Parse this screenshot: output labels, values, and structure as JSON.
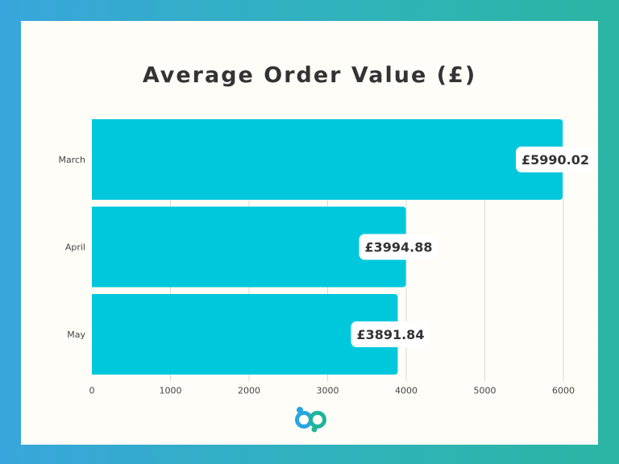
{
  "chart_data": {
    "type": "bar",
    "orientation": "horizontal",
    "title": "Average Order Value (£)",
    "xlabel": "",
    "ylabel": "",
    "categories": [
      "March",
      "April",
      "May"
    ],
    "values": [
      5990.02,
      3994.88,
      3891.84
    ],
    "data_labels": [
      "£5990.02",
      "£3994.88",
      "£3891.84"
    ],
    "x_ticks": [
      "0",
      "1000",
      "2000",
      "3000",
      "4000",
      "5000",
      "6000"
    ],
    "xlim": [
      0,
      6000
    ],
    "grid": "vertical",
    "legend": "none"
  },
  "colors": {
    "bar": "#00c8dc",
    "grid": "#d9d9d9",
    "label_bg": "#ffffff",
    "title": "#333333",
    "text": "#444444",
    "logo_blue": "#27a6e0",
    "logo_teal": "#1fb39a"
  },
  "logo": {
    "name": "bp-logo"
  }
}
